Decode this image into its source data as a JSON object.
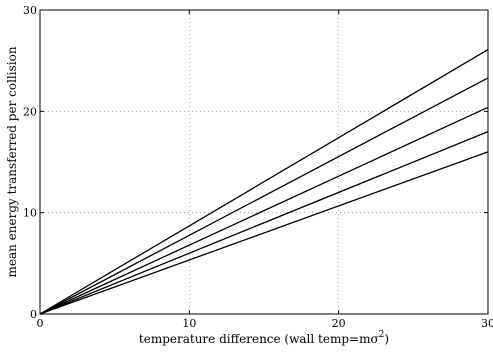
{
  "chart_data": {
    "type": "line",
    "xlabel": "temperature difference (wall temp=mσ",
    "xlabel_sup": "2",
    "xlabel_tail": ")",
    "ylabel": "mean energy transferred per collision",
    "xlim": [
      0,
      30
    ],
    "ylim": [
      0,
      30
    ],
    "xticks": [
      0,
      10,
      20,
      30
    ],
    "yticks": [
      0,
      10,
      20,
      30
    ],
    "grid": true,
    "series": [
      {
        "x": [
          0,
          30
        ],
        "y": [
          0,
          26.1
        ]
      },
      {
        "x": [
          0,
          30
        ],
        "y": [
          0,
          23.3
        ]
      },
      {
        "x": [
          0,
          30
        ],
        "y": [
          0,
          20.4
        ]
      },
      {
        "x": [
          0,
          30
        ],
        "y": [
          0,
          18.0
        ]
      },
      {
        "x": [
          0,
          30
        ],
        "y": [
          0,
          16.0
        ]
      }
    ]
  }
}
